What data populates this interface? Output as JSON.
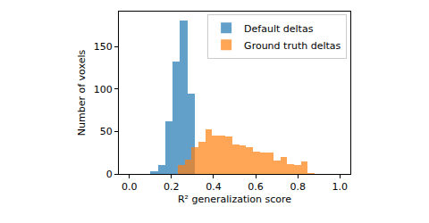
{
  "chart_data": {
    "type": "histogram",
    "x_label": "R² generalization score",
    "y_label": "Number of voxels",
    "series": [
      {
        "name": "Default deltas",
        "color": "#1f77b4",
        "bins": [
          0.1,
          0.135,
          0.17,
          0.205,
          0.24,
          0.275,
          0.31
        ],
        "values": [
          3,
          10,
          62,
          132,
          181,
          94
        ]
      },
      {
        "name": "Ground truth deltas",
        "color": "#ff7f0e",
        "bins": [
          0.23,
          0.2625,
          0.295,
          0.3275,
          0.36,
          0.3925,
          0.425,
          0.4575,
          0.49,
          0.5225,
          0.555,
          0.5875,
          0.62,
          0.6525,
          0.685,
          0.7175,
          0.75,
          0.7825,
          0.815,
          0.8475,
          0.88
        ],
        "values": [
          10,
          17,
          32,
          38,
          53,
          45,
          45,
          44,
          35,
          34,
          31,
          26,
          25,
          25,
          16,
          20,
          12,
          10,
          15,
          1
        ]
      }
    ],
    "xlim": [
      -0.05,
      1.05
    ],
    "xticks": [
      {
        "value": 0,
        "label": "0.0"
      },
      0.2,
      0.4,
      0.6,
      0.8,
      {
        "value": 1,
        "label": "1.0"
      }
    ],
    "ylim": [
      0,
      191
    ],
    "yticks": [
      0,
      50,
      100,
      150
    ],
    "grid": false,
    "legend": "upper right"
  }
}
